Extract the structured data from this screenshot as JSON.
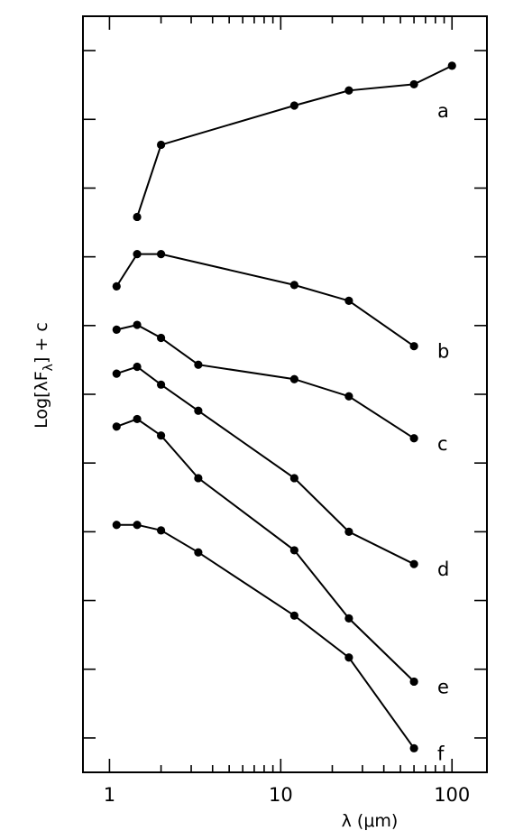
{
  "chart_data": {
    "type": "line",
    "title": "",
    "xlabel": "λ (μm)",
    "ylabel": "Log[λF",
    "ylabel_sub": "λ",
    "ylabel_suffix": "] + c",
    "xscale": "log",
    "xlim": [
      0.7,
      160
    ],
    "ylim": [
      0,
      11
    ],
    "y_ticks": [
      0.5,
      1.5,
      2.5,
      3.5,
      4.5,
      5.5,
      6.5,
      7.5,
      8.5,
      9.5,
      10.5
    ],
    "x_major_ticks": [
      1,
      10,
      100
    ],
    "x_tick_labels": [
      "1",
      "10",
      "100"
    ],
    "x_minor_ticks": [
      2,
      3,
      4,
      5,
      6,
      7,
      8,
      9,
      20,
      30,
      40,
      50,
      60,
      70,
      80,
      90
    ],
    "grid": false,
    "legend": "none",
    "series": [
      {
        "name": "a",
        "x": [
          1.45,
          2.0,
          12,
          25,
          60,
          100
        ],
        "y": [
          8.08,
          9.13,
          9.7,
          9.92,
          10.01,
          10.28
        ]
      },
      {
        "name": "b",
        "x": [
          1.1,
          1.45,
          2.0,
          12,
          25,
          60
        ],
        "y": [
          7.07,
          7.54,
          7.54,
          7.09,
          6.86,
          6.2
        ]
      },
      {
        "name": "c",
        "x": [
          1.1,
          1.45,
          2.0,
          3.3,
          12,
          25,
          60
        ],
        "y": [
          6.44,
          6.51,
          6.32,
          5.93,
          5.72,
          5.47,
          4.86
        ]
      },
      {
        "name": "d",
        "x": [
          1.1,
          1.45,
          2.0,
          3.3,
          12,
          25,
          60
        ],
        "y": [
          5.8,
          5.9,
          5.64,
          5.26,
          4.28,
          3.5,
          3.03
        ]
      },
      {
        "name": "e",
        "x": [
          1.1,
          1.45,
          2.0,
          3.3,
          12,
          25,
          60
        ],
        "y": [
          5.03,
          5.14,
          4.9,
          4.28,
          3.23,
          2.24,
          1.32
        ]
      },
      {
        "name": "f",
        "x": [
          1.1,
          1.45,
          2.0,
          3.3,
          12,
          25,
          60
        ],
        "y": [
          3.6,
          3.6,
          3.52,
          3.2,
          2.28,
          1.67,
          0.35
        ]
      }
    ]
  }
}
